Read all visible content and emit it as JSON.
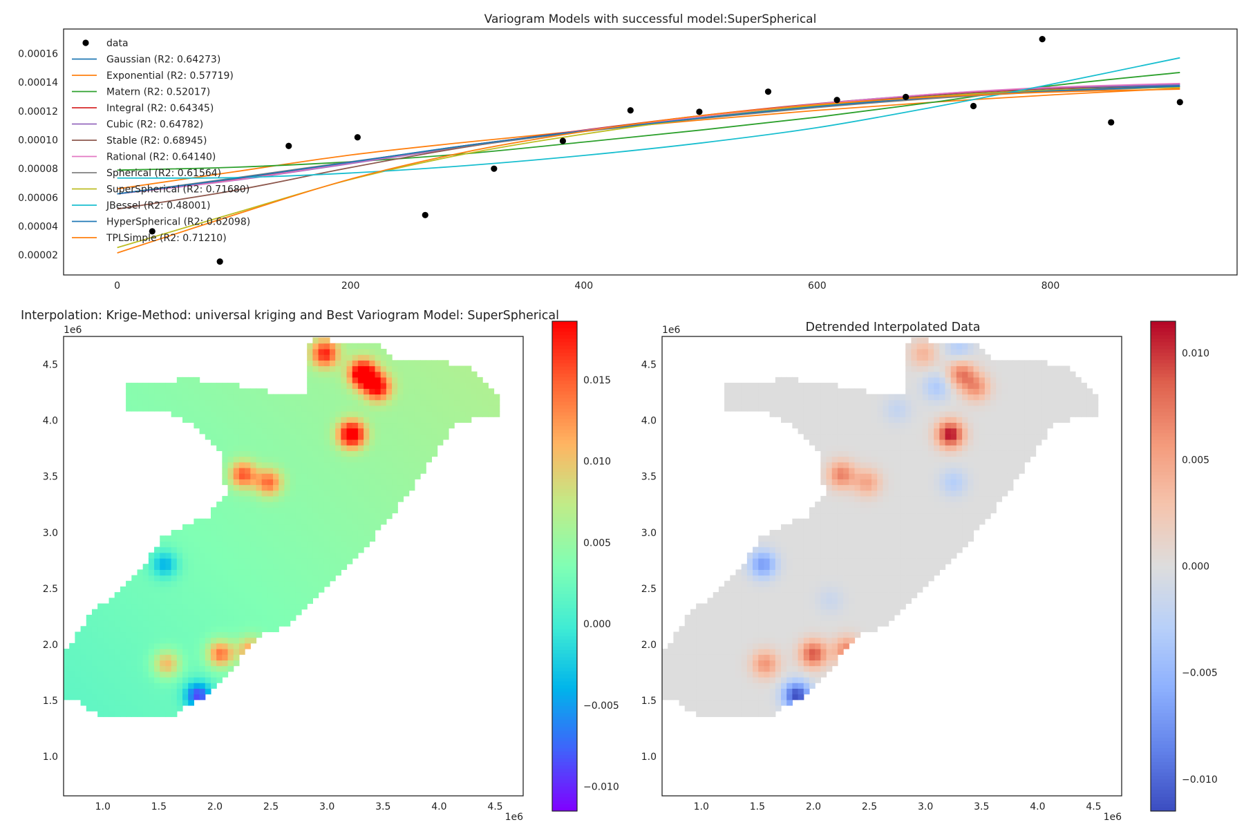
{
  "chart_data": [
    {
      "type": "scatter",
      "title": "Variogram Models with successful model:SuperSpherical",
      "xlabel": "",
      "ylabel": "",
      "xlim": [
        -46,
        960
      ],
      "ylim": [
        6.2e-06,
        0.000177
      ],
      "xticks": [
        0,
        200,
        400,
        600,
        800
      ],
      "yticks": [
        2e-05,
        4e-05,
        6e-05,
        8e-05,
        0.0001,
        0.00012,
        0.00014,
        0.00016
      ],
      "ytick_labels": [
        "0.00002",
        "0.00004",
        "0.00006",
        "0.00008",
        "0.00010",
        "0.00012",
        "0.00014",
        "0.00016"
      ],
      "grid": false,
      "legend_position": "top-left",
      "points": {
        "name": "data",
        "x": [
          30,
          88,
          147,
          206,
          264,
          323,
          382,
          440,
          499,
          558,
          617,
          676,
          734,
          793,
          852,
          911
        ],
        "y": [
          3.65e-05,
          1.55e-05,
          9.58e-05,
          0.0001018,
          4.78e-05,
          8e-05,
          9.93e-05,
          0.0001205,
          0.0001195,
          0.0001335,
          0.0001277,
          0.0001298,
          0.0001235,
          0.00017,
          0.0001122,
          0.0001262
        ]
      },
      "series": [
        {
          "name": "Gaussian (R2: 0.64273)",
          "color": "#1f77b4",
          "x": [
            0,
            100,
            200,
            300,
            400,
            500,
            600,
            700,
            800,
            911
          ],
          "y": [
            6.25e-05,
            7.25e-05,
            8.45e-05,
            9.62e-05,
            0.0001062,
            0.0001162,
            0.0001248,
            0.0001313,
            0.0001357,
            0.0001378
          ]
        },
        {
          "name": "Exponential (R2: 0.57719)",
          "color": "#ff7f0e",
          "x": [
            0,
            100,
            200,
            300,
            400,
            500,
            600,
            700,
            800,
            911
          ],
          "y": [
            6.6e-05,
            7.78e-05,
            8.95e-05,
            9.85e-05,
            0.0001065,
            0.0001138,
            0.0001205,
            0.0001262,
            0.0001312,
            0.0001358
          ]
        },
        {
          "name": "Matern (R2: 0.52017)",
          "color": "#2ca02c",
          "x": [
            0,
            100,
            200,
            300,
            400,
            500,
            600,
            700,
            800,
            911
          ],
          "y": [
            7.9e-05,
            8.1e-05,
            8.48e-05,
            9.05e-05,
            9.85e-05,
            0.0001068,
            0.0001158,
            0.0001262,
            0.0001375,
            0.0001468
          ]
        },
        {
          "name": "Integral (R2: 0.64345)",
          "color": "#d62728",
          "x": [
            0,
            100,
            200,
            300,
            400,
            500,
            600,
            700,
            800,
            911
          ],
          "y": [
            6.25e-05,
            7.22e-05,
            8.42e-05,
            9.62e-05,
            0.0001068,
            0.0001168,
            0.0001252,
            0.0001315,
            0.0001358,
            0.0001388
          ]
        },
        {
          "name": "Cubic (R2: 0.64782)",
          "color": "#9467bd",
          "x": [
            0,
            100,
            200,
            300,
            400,
            500,
            600,
            700,
            800,
            911
          ],
          "y": [
            6.25e-05,
            7.18e-05,
            8.35e-05,
            9.55e-05,
            0.000106,
            0.0001165,
            0.000125,
            0.0001318,
            0.0001362,
            0.0001385
          ]
        },
        {
          "name": "Stable (R2: 0.68945)",
          "color": "#8c564b",
          "x": [
            0,
            100,
            200,
            300,
            400,
            500,
            600,
            700,
            800,
            911
          ],
          "y": [
            5.2e-05,
            6.48e-05,
            8.08e-05,
            9.52e-05,
            0.0001065,
            0.0001165,
            0.0001245,
            0.0001305,
            0.0001348,
            0.0001372
          ]
        },
        {
          "name": "Rational (R2: 0.64140)",
          "color": "#e377c2",
          "x": [
            0,
            100,
            200,
            300,
            400,
            500,
            600,
            700,
            800,
            911
          ],
          "y": [
            6.25e-05,
            7.2e-05,
            8.4e-05,
            9.58e-05,
            0.0001065,
            0.0001162,
            0.0001248,
            0.0001318,
            0.0001365,
            0.0001392
          ]
        },
        {
          "name": "Spherical (R2: 0.61564)",
          "color": "#7f7f7f",
          "x": [
            0,
            100,
            200,
            300,
            400,
            500,
            600,
            700,
            800,
            911
          ],
          "y": [
            6.25e-05,
            7.35e-05,
            8.48e-05,
            9.58e-05,
            0.0001058,
            0.0001148,
            0.0001225,
            0.0001288,
            0.0001335,
            0.0001368
          ]
        },
        {
          "name": "SuperSpherical (R2: 0.71680)",
          "color": "#bcbd22",
          "x": [
            0,
            100,
            200,
            300,
            400,
            500,
            600,
            700,
            800,
            911
          ],
          "y": [
            2.52e-05,
            4.9e-05,
            7.25e-05,
            9.05e-05,
            0.000104,
            0.0001152,
            0.0001238,
            0.0001302,
            0.0001345,
            0.0001365
          ]
        },
        {
          "name": "JBessel (R2: 0.48001)",
          "color": "#17becf",
          "x": [
            0,
            100,
            200,
            300,
            400,
            500,
            600,
            700,
            800,
            911
          ],
          "y": [
            7.35e-05,
            7.38e-05,
            7.7e-05,
            8.22e-05,
            8.92e-05,
            9.78e-05,
            0.0001085,
            0.0001228,
            0.0001385,
            0.000157
          ]
        },
        {
          "name": "HyperSpherical (R2: 0.62098)",
          "color": "#1f77b4",
          "x": [
            0,
            100,
            200,
            300,
            400,
            500,
            600,
            700,
            800,
            911
          ],
          "y": [
            6.25e-05,
            7.3e-05,
            8.45e-05,
            9.62e-05,
            0.0001062,
            0.0001152,
            0.0001232,
            0.0001295,
            0.000134,
            0.0001372
          ]
        },
        {
          "name": "TPLSimple (R2: 0.71210)",
          "color": "#ff7f0e",
          "x": [
            0,
            100,
            200,
            300,
            400,
            500,
            600,
            700,
            800,
            911
          ],
          "y": [
            2.15e-05,
            4.78e-05,
            7.28e-05,
            9.18e-05,
            0.0001058,
            0.0001168,
            0.0001245,
            0.0001298,
            0.0001332,
            0.0001352
          ]
        }
      ]
    },
    {
      "type": "heatmap",
      "title": "Interpolation: Krige-Method: universal kriging and Best Variogram Model: SuperSpherical",
      "xlabel": "",
      "ylabel": "",
      "xlim": [
        0.65,
        4.75
      ],
      "ylim": [
        0.65,
        4.75
      ],
      "xticks": [
        1.0,
        1.5,
        2.0,
        2.5,
        3.0,
        3.5,
        4.0,
        4.5
      ],
      "yticks": [
        1.0,
        1.5,
        2.0,
        2.5,
        3.0,
        3.5,
        4.0,
        4.5
      ],
      "offset_label": "1e6",
      "colormap": "rainbow",
      "vmin": -0.0115,
      "vmax": 0.0186,
      "colorbar_ticks": [
        -0.01,
        -0.005,
        0.0,
        0.005,
        0.01,
        0.015
      ],
      "colorbar_tick_labels": [
        "−0.010",
        "−0.005",
        "0.000",
        "0.005",
        "0.010",
        "0.015"
      ],
      "baseline_trend": {
        "min": 0.0015,
        "max": 0.0065
      },
      "hotspots": [
        {
          "x": 3.32,
          "y": 4.42,
          "value": 0.0175
        },
        {
          "x": 3.22,
          "y": 3.88,
          "value": 0.0165
        },
        {
          "x": 2.98,
          "y": 4.6,
          "value": 0.012
        },
        {
          "x": 3.45,
          "y": 4.3,
          "value": 0.013
        },
        {
          "x": 2.25,
          "y": 3.52,
          "value": 0.011
        },
        {
          "x": 2.48,
          "y": 3.45,
          "value": 0.01
        },
        {
          "x": 2.05,
          "y": 1.92,
          "value": 0.011
        },
        {
          "x": 2.32,
          "y": 1.95,
          "value": 0.009
        },
        {
          "x": 1.57,
          "y": 1.83,
          "value": 0.008
        },
        {
          "x": 1.55,
          "y": 2.72,
          "value": -0.007
        },
        {
          "x": 1.85,
          "y": 1.55,
          "value": -0.0115
        }
      ]
    },
    {
      "type": "heatmap",
      "title": "Detrended Interpolated Data",
      "xlabel": "",
      "ylabel": "",
      "xlim": [
        0.65,
        4.75
      ],
      "ylim": [
        0.65,
        4.75
      ],
      "xticks": [
        1.0,
        1.5,
        2.0,
        2.5,
        3.0,
        3.5,
        4.0,
        4.5
      ],
      "yticks": [
        1.0,
        1.5,
        2.0,
        2.5,
        3.0,
        3.5,
        4.0,
        4.5
      ],
      "offset_label": "1e6",
      "colormap": "coolwarm",
      "vmin": -0.0115,
      "vmax": 0.0115,
      "colorbar_ticks": [
        -0.01,
        -0.005,
        0.0,
        0.005,
        0.01
      ],
      "colorbar_tick_labels": [
        "−0.010",
        "−0.005",
        "0.000",
        "0.005",
        "0.010"
      ],
      "hotspots": [
        {
          "x": 3.22,
          "y": 3.88,
          "value": 0.0115
        },
        {
          "x": 3.32,
          "y": 4.42,
          "value": 0.007
        },
        {
          "x": 3.45,
          "y": 4.3,
          "value": 0.006
        },
        {
          "x": 2.98,
          "y": 4.6,
          "value": 0.004
        },
        {
          "x": 2.25,
          "y": 3.52,
          "value": 0.007
        },
        {
          "x": 2.48,
          "y": 3.45,
          "value": 0.005
        },
        {
          "x": 2.0,
          "y": 1.92,
          "value": 0.009
        },
        {
          "x": 2.3,
          "y": 1.95,
          "value": 0.007
        },
        {
          "x": 1.57,
          "y": 1.83,
          "value": 0.006
        },
        {
          "x": 1.55,
          "y": 2.72,
          "value": -0.007
        },
        {
          "x": 1.85,
          "y": 1.55,
          "value": -0.0115
        },
        {
          "x": 3.3,
          "y": 4.65,
          "value": -0.003
        },
        {
          "x": 3.1,
          "y": 4.3,
          "value": -0.0035
        },
        {
          "x": 3.25,
          "y": 3.45,
          "value": -0.003
        },
        {
          "x": 2.75,
          "y": 4.1,
          "value": -0.002
        },
        {
          "x": 2.15,
          "y": 2.4,
          "value": -0.0015
        }
      ]
    }
  ]
}
